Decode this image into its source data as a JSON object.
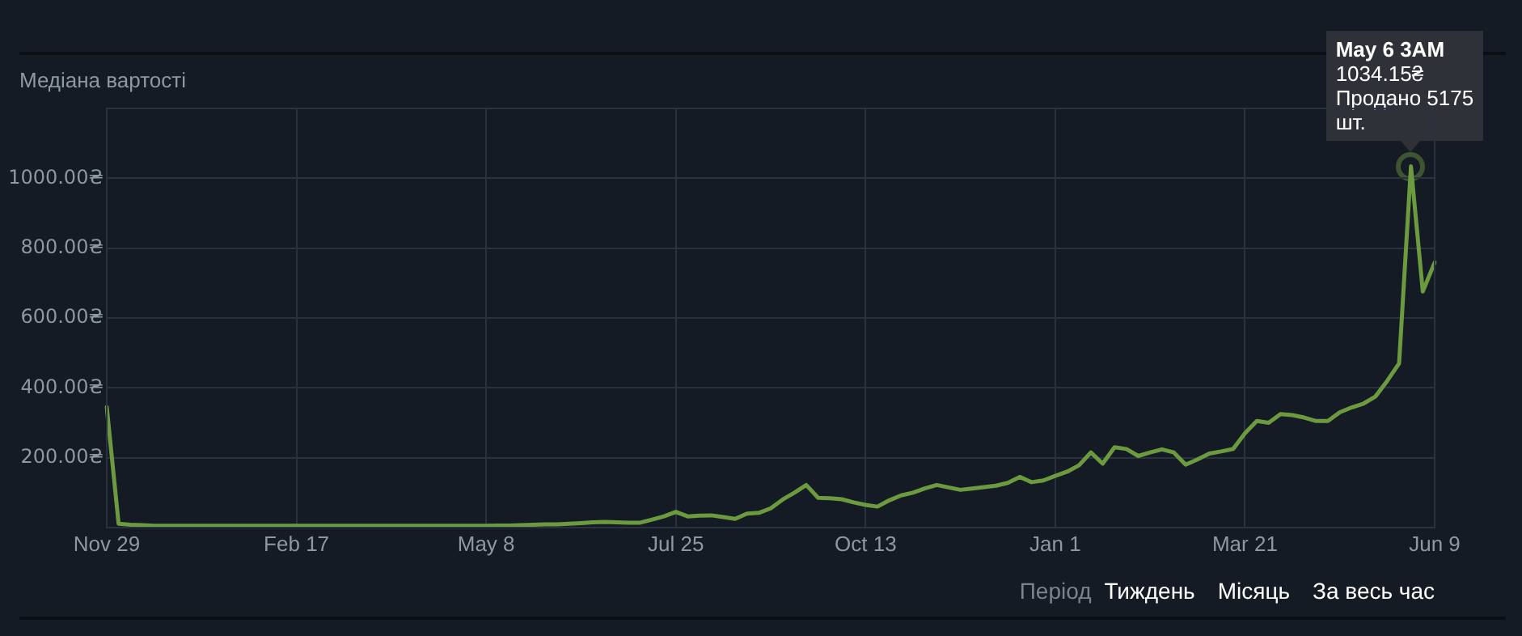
{
  "chart_data": {
    "type": "line",
    "title": "Медіана вартості",
    "color": "#6c9a3e",
    "marker": "none",
    "grid": true,
    "legend": false,
    "categories": [
      "Nov 29",
      null,
      null,
      null,
      null,
      null,
      null,
      null,
      null,
      null,
      null,
      null,
      null,
      null,
      null,
      null,
      "Feb 17",
      null,
      null,
      null,
      null,
      null,
      null,
      null,
      null,
      null,
      null,
      null,
      null,
      null,
      null,
      null,
      "May 8",
      null,
      null,
      null,
      null,
      null,
      null,
      null,
      null,
      null,
      null,
      null,
      null,
      null,
      null,
      null,
      "Jul 25",
      null,
      null,
      null,
      null,
      null,
      null,
      null,
      null,
      null,
      null,
      null,
      null,
      null,
      null,
      null,
      "Oct 13",
      null,
      null,
      null,
      null,
      null,
      null,
      null,
      null,
      null,
      null,
      null,
      null,
      null,
      null,
      null,
      "Jan 1",
      null,
      null,
      null,
      null,
      null,
      null,
      null,
      null,
      null,
      null,
      null,
      null,
      null,
      null,
      null,
      "Mar 21",
      null,
      null,
      null,
      null,
      null,
      null,
      null,
      null,
      null,
      null,
      null,
      null,
      null,
      null,
      null,
      "Jun 9"
    ],
    "values": [
      345,
      11,
      8,
      7,
      5,
      5,
      5,
      5,
      5,
      5,
      5,
      5,
      5,
      5,
      5,
      5,
      5,
      5,
      5,
      5,
      5,
      5,
      5,
      5,
      5,
      5,
      5,
      5,
      5,
      5,
      5,
      5,
      5,
      6,
      6,
      7,
      8,
      9,
      9,
      11,
      13,
      15,
      16,
      15,
      14,
      14,
      23,
      32,
      45,
      32,
      34,
      35,
      30,
      25,
      40,
      42,
      55,
      80,
      100,
      122,
      85,
      84,
      81,
      72,
      65,
      60,
      78,
      92,
      100,
      112,
      122,
      115,
      108,
      112,
      116,
      120,
      128,
      145,
      130,
      135,
      148,
      160,
      178,
      215,
      183,
      230,
      225,
      205,
      215,
      224,
      215,
      180,
      195,
      212,
      218,
      225,
      270,
      305,
      300,
      325,
      322,
      315,
      305,
      305,
      330,
      344,
      355,
      375,
      420,
      470,
      1034.15,
      676,
      759
    ],
    "ylim": [
      0,
      1200
    ],
    "yticks": [
      {
        "value": 200,
        "label": "200.00₴"
      },
      {
        "value": 400,
        "label": "400.00₴"
      },
      {
        "value": 600,
        "label": "600.00₴"
      },
      {
        "value": 800,
        "label": "800.00₴"
      },
      {
        "value": 1000,
        "label": "1000.00₴"
      }
    ],
    "annotations": [
      {
        "text": "May 6 3AM\n1034.15₴\nПродано 5175\nшт.",
        "y": 1034.15
      },
      "Період",
      "Тиждень",
      "Місяць",
      "За весь час"
    ]
  }
}
